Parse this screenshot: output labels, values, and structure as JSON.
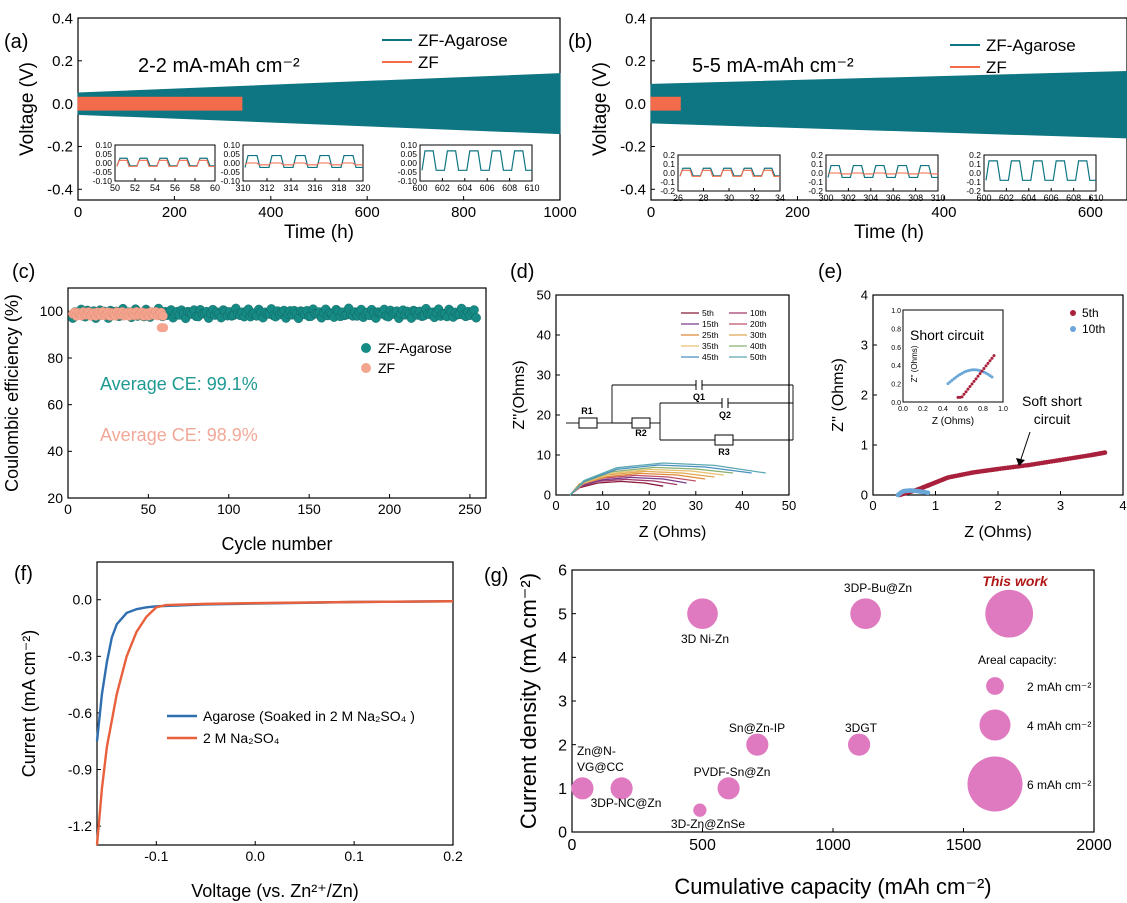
{
  "chart_data": [
    {
      "id": "a",
      "panel_label": "(a)",
      "type": "line",
      "annotation": "2-2 mA-mAh cm⁻²",
      "xlabel": "Time (h)",
      "ylabel": "Voltage (V)",
      "xlim": [
        0,
        1000
      ],
      "ylim": [
        -0.45,
        0.4
      ],
      "xticks": [
        0,
        200,
        400,
        600,
        800,
        1000
      ],
      "yticks": [
        -0.4,
        -0.2,
        0.0,
        0.2,
        0.4
      ],
      "series": [
        {
          "name": "ZF-Agarose",
          "color": "#0e7583",
          "envelope": {
            "x": [
              0,
              1000
            ],
            "upper": [
              0.05,
              0.14
            ],
            "lower": [
              -0.05,
              -0.14
            ]
          }
        },
        {
          "name": "ZF",
          "color": "#f26b4a",
          "envelope": {
            "x": [
              0,
              340
            ],
            "upper": [
              0.03,
              0.03
            ],
            "lower": [
              -0.03,
              -0.03
            ]
          }
        }
      ],
      "insets": [
        {
          "xticks": [
            50,
            52,
            54,
            56,
            58,
            60
          ],
          "yticks": [
            -0.1,
            -0.05,
            0.0,
            0.05,
            0.1
          ]
        },
        {
          "xticks": [
            310,
            312,
            314,
            316,
            318,
            320
          ],
          "yticks": [
            -0.1,
            -0.05,
            0.0,
            0.05,
            0.1
          ]
        },
        {
          "xticks": [
            600,
            602,
            604,
            606,
            608,
            610
          ],
          "yticks": [
            -0.1,
            -0.05,
            0.0,
            0.05,
            0.1
          ]
        }
      ]
    },
    {
      "id": "b",
      "panel_label": "(b)",
      "type": "line",
      "annotation": "5-5 mA-mAh cm⁻²",
      "xlabel": "Time (h)",
      "ylabel": "Voltage (V)",
      "xlim": [
        0,
        650
      ],
      "ylim": [
        -0.45,
        0.4
      ],
      "xticks": [
        0,
        200,
        400,
        600
      ],
      "yticks": [
        -0.4,
        -0.2,
        0.0,
        0.2,
        0.4
      ],
      "series": [
        {
          "name": "ZF-Agarose",
          "color": "#0e7583",
          "envelope": {
            "x": [
              0,
              650
            ],
            "upper": [
              0.09,
              0.15
            ],
            "lower": [
              -0.09,
              -0.16
            ]
          }
        },
        {
          "name": "ZF",
          "color": "#f26b4a",
          "envelope": {
            "x": [
              0,
              40
            ],
            "upper": [
              0.03,
              0.03
            ],
            "lower": [
              -0.03,
              -0.03
            ]
          }
        }
      ],
      "insets": [
        {
          "xticks": [
            26,
            28,
            30,
            32,
            34
          ],
          "yticks": [
            -0.2,
            -0.1,
            0.0,
            0.1,
            0.2
          ]
        },
        {
          "xticks": [
            300,
            302,
            304,
            306,
            308,
            310
          ],
          "yticks": [
            -0.2,
            -0.1,
            0.0,
            0.1,
            0.2
          ]
        },
        {
          "xticks": [
            600,
            602,
            604,
            606,
            608,
            610
          ],
          "yticks": [
            -0.2,
            -0.1,
            0.0,
            0.1,
            0.2
          ]
        }
      ]
    },
    {
      "id": "c",
      "panel_label": "(c)",
      "type": "scatter",
      "xlabel": "Cycle number",
      "ylabel": "Coulombic efficiency (%)",
      "xlim": [
        0,
        260
      ],
      "ylim": [
        20,
        110
      ],
      "xticks": [
        0,
        50,
        100,
        150,
        200,
        250
      ],
      "yticks": [
        20,
        40,
        60,
        80,
        100
      ],
      "series": [
        {
          "name": "ZF-Agarose",
          "color": "#168a84",
          "x_range": [
            3,
            255
          ],
          "mean": 99.1
        },
        {
          "name": "ZF",
          "color": "#f4a590",
          "x_range": [
            3,
            60
          ],
          "mean": 98.9
        }
      ],
      "annotations": [
        "Average CE: 99.1%",
        "Average CE: 98.9%"
      ]
    },
    {
      "id": "d",
      "panel_label": "(d)",
      "type": "line",
      "xlabel": "Z (Ohms)",
      "ylabel": "Z''(Ohms)",
      "xlim": [
        0,
        50
      ],
      "ylim": [
        0,
        50
      ],
      "xticks": [
        0,
        10,
        20,
        30,
        40,
        50
      ],
      "yticks": [
        0,
        10,
        20,
        30,
        40,
        50
      ],
      "series": [
        {
          "name": "5th",
          "color": "#8b1a3a",
          "x": [
            3,
            5,
            9,
            14,
            19,
            23
          ],
          "y": [
            0,
            1.8,
            3.0,
            3.4,
            3.0,
            2.2
          ]
        },
        {
          "name": "10th",
          "color": "#a03a6a",
          "x": [
            3,
            5,
            9,
            15,
            21,
            26
          ],
          "y": [
            0,
            2.0,
            3.4,
            3.9,
            3.5,
            2.6
          ]
        },
        {
          "name": "15th",
          "color": "#7a3a8a",
          "x": [
            3,
            5,
            10,
            16,
            23,
            28
          ],
          "y": [
            0,
            2.2,
            3.8,
            4.4,
            4.0,
            3.0
          ]
        },
        {
          "name": "20th",
          "color": "#c0506a",
          "x": [
            3,
            5,
            10,
            17,
            24,
            30
          ],
          "y": [
            0,
            2.4,
            4.2,
            4.9,
            4.5,
            3.5
          ]
        },
        {
          "name": "25th",
          "color": "#e08a3a",
          "x": [
            3,
            5,
            11,
            18,
            26,
            32
          ],
          "y": [
            0,
            2.6,
            4.6,
            5.4,
            5.0,
            4.0
          ]
        },
        {
          "name": "30th",
          "color": "#e0a850",
          "x": [
            3,
            5,
            11,
            19,
            27,
            34
          ],
          "y": [
            0,
            2.8,
            5.0,
            5.9,
            5.5,
            4.5
          ]
        },
        {
          "name": "35th",
          "color": "#e6c070",
          "x": [
            3,
            6,
            12,
            20,
            29,
            36
          ],
          "y": [
            0,
            3.0,
            5.4,
            6.4,
            6.0,
            5.0
          ]
        },
        {
          "name": "40th",
          "color": "#88b070",
          "x": [
            3,
            6,
            12,
            21,
            30,
            38
          ],
          "y": [
            0,
            3.2,
            5.8,
            6.9,
            6.5,
            5.5
          ]
        },
        {
          "name": "45th",
          "color": "#4a90c0",
          "x": [
            3,
            6,
            13,
            22,
            32,
            42
          ],
          "y": [
            0,
            3.4,
            6.4,
            7.5,
            7.0,
            5.5
          ]
        },
        {
          "name": "50th",
          "color": "#5aa8b0",
          "x": [
            3,
            6,
            13,
            23,
            34,
            45
          ],
          "y": [
            0,
            3.6,
            6.8,
            8.0,
            7.4,
            5.5
          ]
        }
      ],
      "circuit_labels": [
        "R1",
        "R2",
        "R3",
        "Q1",
        "Q2"
      ]
    },
    {
      "id": "e",
      "panel_label": "(e)",
      "type": "scatter",
      "xlabel": "Z (Ohms)",
      "ylabel": "Z'' (Ohms)",
      "xlim": [
        0,
        4
      ],
      "ylim": [
        0,
        4
      ],
      "xticks": [
        0,
        1,
        2,
        3,
        4
      ],
      "yticks": [
        0,
        1,
        2,
        3,
        4
      ],
      "series": [
        {
          "name": "5th",
          "color": "#a8203c",
          "x": [
            0.42,
            0.55,
            0.7,
            0.9,
            1.2,
            1.6,
            2.0,
            2.5,
            3.0,
            3.5,
            3.72
          ],
          "y": [
            0.0,
            0.05,
            0.1,
            0.2,
            0.35,
            0.45,
            0.52,
            0.6,
            0.7,
            0.8,
            0.85
          ]
        },
        {
          "name": "10th",
          "color": "#6aa6d8",
          "x": [
            0.4,
            0.45,
            0.5,
            0.6,
            0.7,
            0.8,
            0.9
          ],
          "y": [
            0.0,
            0.05,
            0.08,
            0.09,
            0.08,
            0.06,
            0.04
          ]
        }
      ],
      "annotations": [
        "Short circuit",
        "Soft short circuit"
      ],
      "inset": {
        "xlabel": "Z (Ohms)",
        "ylabel": "Z'' (Ohms)",
        "xlim": [
          0,
          1.0
        ],
        "ylim": [
          0,
          1.0
        ],
        "xticks": [
          0.0,
          0.2,
          0.4,
          0.6,
          0.8,
          1.0
        ],
        "yticks": [
          0.0,
          0.2,
          0.4,
          0.6,
          0.8,
          1.0
        ]
      }
    },
    {
      "id": "f",
      "panel_label": "(f)",
      "type": "line",
      "xlabel": "Voltage (vs. Zn²⁺/Zn)",
      "ylabel": "Current (mA cm⁻²)",
      "xlim": [
        -0.16,
        0.2
      ],
      "ylim": [
        -1.3,
        0.2
      ],
      "xticks": [
        -0.1,
        0.0,
        0.1,
        0.2
      ],
      "yticks": [
        -1.2,
        -0.9,
        -0.6,
        -0.3,
        0.0
      ],
      "series": [
        {
          "name": "Agarose (Soaked in 2 M Na₂SO₄ )",
          "color": "#2f6fb0",
          "x": [
            -0.16,
            -0.155,
            -0.15,
            -0.145,
            -0.14,
            -0.13,
            -0.12,
            -0.11,
            -0.1,
            -0.05,
            0.0,
            0.1,
            0.2
          ],
          "y": [
            -0.75,
            -0.5,
            -0.33,
            -0.2,
            -0.13,
            -0.07,
            -0.05,
            -0.04,
            -0.035,
            -0.025,
            -0.02,
            -0.012,
            -0.008
          ]
        },
        {
          "name": "2 M Na₂SO₄",
          "color": "#e8603c",
          "x": [
            -0.16,
            -0.155,
            -0.15,
            -0.14,
            -0.13,
            -0.12,
            -0.11,
            -0.1,
            -0.09,
            -0.05,
            0.0,
            0.1,
            0.2
          ],
          "y": [
            -1.3,
            -1.0,
            -0.78,
            -0.5,
            -0.3,
            -0.17,
            -0.09,
            -0.04,
            -0.028,
            -0.022,
            -0.018,
            -0.012,
            -0.008
          ]
        }
      ]
    },
    {
      "id": "g",
      "panel_label": "(g)",
      "type": "scatter",
      "xlabel": "Cumulative capacity (mAh cm⁻²)",
      "ylabel": "Current density (mA cm⁻²)",
      "xlim": [
        0,
        2000
      ],
      "ylim": [
        0,
        6
      ],
      "xticks": [
        0,
        500,
        1000,
        1500,
        2000
      ],
      "yticks": [
        0,
        1,
        2,
        3,
        4,
        5,
        6
      ],
      "color": "#e07ac0",
      "points": [
        {
          "label": "3D Ni-Zn",
          "x": 500,
          "y": 5,
          "areal_capacity": 3.5
        },
        {
          "label": "3DP-Bu@Zn",
          "x": 1125,
          "y": 5,
          "areal_capacity": 3.5
        },
        {
          "label": "This work",
          "x": 1675,
          "y": 5,
          "areal_capacity": 10
        },
        {
          "label": "Sn@Zn-IP",
          "x": 710,
          "y": 2,
          "areal_capacity": 1.5
        },
        {
          "label": "3DGT",
          "x": 1100,
          "y": 2,
          "areal_capacity": 1.5
        },
        {
          "label": "PVDF-Sn@Zn",
          "x": 600,
          "y": 1,
          "areal_capacity": 1.5
        },
        {
          "label": "Zn@N-VG@CC",
          "x": 40,
          "y": 1,
          "areal_capacity": 1.5
        },
        {
          "label": "3DP-NC@Zn",
          "x": 190,
          "y": 1,
          "areal_capacity": 1.5
        },
        {
          "label": "3D-Zn@ZnSe",
          "x": 490,
          "y": 0.5,
          "areal_capacity": 0.3
        }
      ],
      "size_legend_title": "Areal capacity:",
      "size_legend": [
        {
          "label": "2 mAh cm⁻²",
          "areal_capacity": 2
        },
        {
          "label": "4 mAh cm⁻²",
          "areal_capacity": 4
        },
        {
          "label": "6 mAh cm⁻²",
          "areal_capacity": 6
        }
      ]
    }
  ]
}
